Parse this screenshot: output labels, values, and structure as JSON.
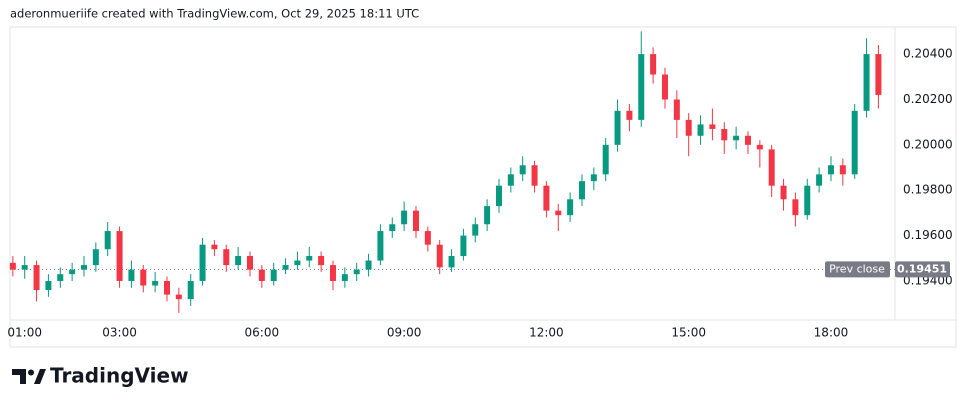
{
  "header": "aderonmueriife created with TradingView.com, Oct 29, 2025 18:11 UTC",
  "footer": "TradingView",
  "chart_data": {
    "type": "candlestick",
    "up_color": "#089981",
    "down_color": "#f23645",
    "x": [
      0.75,
      1.0,
      1.25,
      1.5,
      1.75,
      2.0,
      2.25,
      2.5,
      2.75,
      3.0,
      3.25,
      3.5,
      3.75,
      4.0,
      4.25,
      4.5,
      4.75,
      5.0,
      5.25,
      5.5,
      5.75,
      6.0,
      6.25,
      6.5,
      6.75,
      7.0,
      7.25,
      7.5,
      7.75,
      8.0,
      8.25,
      8.5,
      8.75,
      9.0,
      9.25,
      9.5,
      9.75,
      10.0,
      10.25,
      10.5,
      10.75,
      11.0,
      11.25,
      11.5,
      11.75,
      12.0,
      12.25,
      12.5,
      12.75,
      13.0,
      13.25,
      13.5,
      13.75,
      14.0,
      14.25,
      14.5,
      14.75,
      15.0,
      15.25,
      15.5,
      15.75,
      16.0,
      16.25,
      16.5,
      16.75,
      17.0,
      17.25,
      17.5,
      17.75,
      18.0,
      18.25,
      18.5,
      18.75,
      19.0
    ],
    "open": [
      0.1948,
      0.1945,
      0.1947,
      0.1936,
      0.194,
      0.1943,
      0.1945,
      0.1947,
      0.1954,
      0.1962,
      0.194,
      0.1945,
      0.1938,
      0.194,
      0.1934,
      0.1932,
      0.194,
      0.1956,
      0.1954,
      0.1947,
      0.1951,
      0.1945,
      0.194,
      0.1945,
      0.1947,
      0.1949,
      0.1951,
      0.1947,
      0.194,
      0.1943,
      0.1945,
      0.1949,
      0.1962,
      0.1965,
      0.1971,
      0.1962,
      0.1956,
      0.1946,
      0.1951,
      0.196,
      0.1965,
      0.1973,
      0.1982,
      0.1987,
      0.1991,
      0.1982,
      0.1971,
      0.1969,
      0.1976,
      0.1984,
      0.1987,
      0.2,
      0.2015,
      0.2011,
      0.204,
      0.2031,
      0.202,
      0.2011,
      0.2004,
      0.2009,
      0.2007,
      0.2002,
      0.2004,
      0.2,
      0.1998,
      0.1982,
      0.1976,
      0.1969,
      0.1982,
      0.1987,
      0.1991,
      0.1987,
      0.2015,
      0.204
    ],
    "high": [
      0.1951,
      0.1951,
      0.1949,
      0.1943,
      0.1946,
      0.1948,
      0.1951,
      0.1957,
      0.1966,
      0.1964,
      0.1949,
      0.1947,
      0.1944,
      0.1942,
      0.1937,
      0.1943,
      0.1959,
      0.1958,
      0.1956,
      0.1955,
      0.1953,
      0.1947,
      0.1948,
      0.195,
      0.1953,
      0.1955,
      0.1953,
      0.1949,
      0.1946,
      0.1948,
      0.1952,
      0.1965,
      0.1968,
      0.1975,
      0.1973,
      0.1964,
      0.1958,
      0.1954,
      0.1963,
      0.1968,
      0.1976,
      0.1985,
      0.199,
      0.1995,
      0.1993,
      0.1984,
      0.1974,
      0.1979,
      0.1987,
      0.199,
      0.2003,
      0.202,
      0.2018,
      0.205,
      0.2043,
      0.2034,
      0.2024,
      0.2014,
      0.2013,
      0.2016,
      0.201,
      0.2008,
      0.2006,
      0.2002,
      0.2,
      0.1985,
      0.1979,
      0.1985,
      0.199,
      0.1995,
      0.1994,
      0.2018,
      0.2047,
      0.2044
    ],
    "low": [
      0.1942,
      0.1941,
      0.1931,
      0.1933,
      0.1937,
      0.194,
      0.1942,
      0.1944,
      0.1951,
      0.1937,
      0.1937,
      0.1935,
      0.1935,
      0.1931,
      0.1926,
      0.1929,
      0.1938,
      0.1951,
      0.1944,
      0.1945,
      0.1942,
      0.1937,
      0.1938,
      0.1943,
      0.1945,
      0.1946,
      0.1944,
      0.1936,
      0.1937,
      0.194,
      0.1942,
      0.1947,
      0.1959,
      0.1962,
      0.1959,
      0.1953,
      0.1943,
      0.1944,
      0.1949,
      0.1957,
      0.1962,
      0.197,
      0.1979,
      0.1984,
      0.1979,
      0.1968,
      0.1962,
      0.1966,
      0.1973,
      0.198,
      0.1984,
      0.1997,
      0.2006,
      0.2008,
      0.2027,
      0.2016,
      0.2003,
      0.1995,
      0.2,
      0.2002,
      0.1996,
      0.1998,
      0.1996,
      0.199,
      0.1977,
      0.1971,
      0.1964,
      0.1967,
      0.1979,
      0.1984,
      0.1982,
      0.1985,
      0.2012,
      0.2016
    ],
    "close": [
      0.1945,
      0.1947,
      0.1936,
      0.194,
      0.1943,
      0.1945,
      0.1947,
      0.1954,
      0.1962,
      0.194,
      0.1945,
      0.1938,
      0.194,
      0.1934,
      0.1932,
      0.194,
      0.1956,
      0.1954,
      0.1947,
      0.1951,
      0.1945,
      0.194,
      0.1945,
      0.1947,
      0.1949,
      0.1951,
      0.1947,
      0.194,
      0.1943,
      0.1945,
      0.1949,
      0.1962,
      0.1965,
      0.1971,
      0.1962,
      0.1956,
      0.1946,
      0.1951,
      0.196,
      0.1965,
      0.1973,
      0.1982,
      0.1987,
      0.1991,
      0.1982,
      0.1971,
      0.1969,
      0.1976,
      0.1984,
      0.1987,
      0.2,
      0.2015,
      0.2011,
      0.204,
      0.2031,
      0.202,
      0.2011,
      0.2004,
      0.2009,
      0.2007,
      0.2002,
      0.2004,
      0.2,
      0.1998,
      0.1982,
      0.1976,
      0.1969,
      0.1982,
      0.1987,
      0.1991,
      0.1987,
      0.2015,
      0.204,
      0.2022
    ],
    "xlim": [
      0.69,
      19.35
    ],
    "xticks": [
      {
        "value": 1,
        "label": "01:00"
      },
      {
        "value": 3,
        "label": "03:00"
      },
      {
        "value": 6,
        "label": "06:00"
      },
      {
        "value": 9,
        "label": "09:00"
      },
      {
        "value": 12,
        "label": "12:00"
      },
      {
        "value": 15,
        "label": "15:00"
      },
      {
        "value": 18,
        "label": "18:00"
      }
    ],
    "ylim": [
      0.19228,
      0.20515
    ],
    "yticks": [
      {
        "value": 0.194,
        "label": "0.19400"
      },
      {
        "value": 0.196,
        "label": "0.19600"
      },
      {
        "value": 0.198,
        "label": "0.19800"
      },
      {
        "value": 0.2,
        "label": "0.20000"
      },
      {
        "value": 0.202,
        "label": "0.20200"
      },
      {
        "value": 0.204,
        "label": "0.20400"
      }
    ],
    "grid": false,
    "prev_close": {
      "label": "Prev close",
      "value": 0.19451
    }
  }
}
